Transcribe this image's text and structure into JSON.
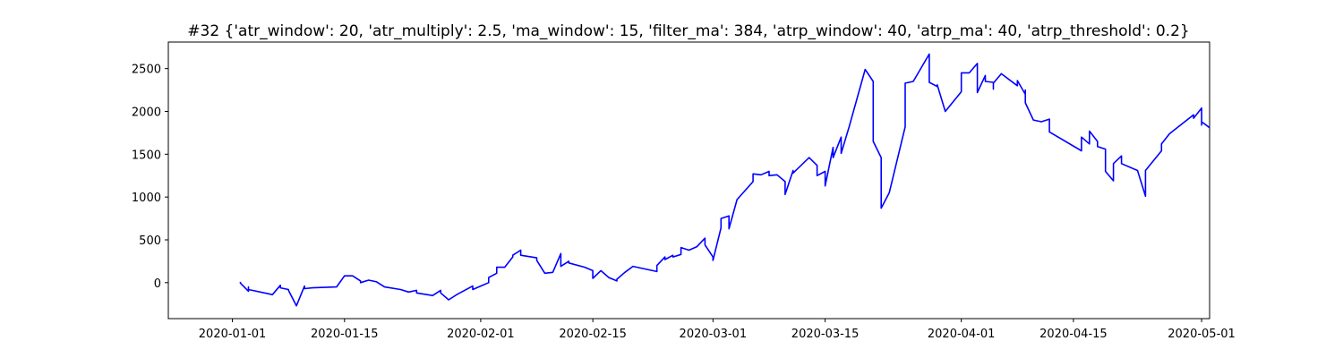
{
  "chart_data": {
    "type": "line",
    "title": "#32 {'atr_window': 20, 'atr_multiply': 2.5, 'ma_window': 15, 'filter_ma': 384, 'atrp_window': 40, 'atrp_ma': 40, 'atrp_threshold': 0.2}",
    "xlabel": "",
    "ylabel": "",
    "x_axis": "date",
    "xlim": [
      "2019-12-24",
      "2020-05-02"
    ],
    "ylim": [
      -420,
      2810
    ],
    "x_ticks": [
      "2020-01-01",
      "2020-01-15",
      "2020-02-01",
      "2020-02-15",
      "2020-03-01",
      "2020-03-15",
      "2020-04-01",
      "2020-04-15",
      "2020-05-01"
    ],
    "y_ticks": [
      0,
      500,
      1000,
      1500,
      2000,
      2500
    ],
    "grid": false,
    "legend": "none",
    "series": [
      {
        "color": "#0000ff",
        "points": [
          [
            "2020-01-02",
            10
          ],
          [
            "2020-01-02",
            -5
          ],
          [
            "2020-01-03",
            -100
          ],
          [
            "2020-01-03",
            -50
          ],
          [
            "2020-01-03",
            -80
          ],
          [
            "2020-01-06",
            -140
          ],
          [
            "2020-01-07",
            -30
          ],
          [
            "2020-01-07",
            -60
          ],
          [
            "2020-01-08",
            -80
          ],
          [
            "2020-01-08",
            -90
          ],
          [
            "2020-01-09",
            -270
          ],
          [
            "2020-01-10",
            -40
          ],
          [
            "2020-01-10",
            -70
          ],
          [
            "2020-01-11",
            -60
          ],
          [
            "2020-01-14",
            -50
          ],
          [
            "2020-01-15",
            80
          ],
          [
            "2020-01-16",
            80
          ],
          [
            "2020-01-17",
            20
          ],
          [
            "2020-01-17",
            0
          ],
          [
            "2020-01-18",
            30
          ],
          [
            "2020-01-19",
            10
          ],
          [
            "2020-01-20",
            -50
          ],
          [
            "2020-01-22",
            -80
          ],
          [
            "2020-01-23",
            -110
          ],
          [
            "2020-01-24",
            -90
          ],
          [
            "2020-01-24",
            -120
          ],
          [
            "2020-01-26",
            -150
          ],
          [
            "2020-01-27",
            -90
          ],
          [
            "2020-01-27",
            -120
          ],
          [
            "2020-01-28",
            -200
          ],
          [
            "2020-01-29",
            -140
          ],
          [
            "2020-01-31",
            -40
          ],
          [
            "2020-01-31",
            -80
          ],
          [
            "2020-02-01",
            -40
          ],
          [
            "2020-02-02",
            0
          ],
          [
            "2020-02-02",
            60
          ],
          [
            "2020-02-03",
            110
          ],
          [
            "2020-02-03",
            180
          ],
          [
            "2020-02-04",
            180
          ],
          [
            "2020-02-05",
            300
          ],
          [
            "2020-02-05",
            320
          ],
          [
            "2020-02-06",
            380
          ],
          [
            "2020-02-06",
            320
          ],
          [
            "2020-02-08",
            290
          ],
          [
            "2020-02-08",
            260
          ],
          [
            "2020-02-09",
            110
          ],
          [
            "2020-02-10",
            120
          ],
          [
            "2020-02-11",
            340
          ],
          [
            "2020-02-11",
            190
          ],
          [
            "2020-02-12",
            250
          ],
          [
            "2020-02-12",
            230
          ],
          [
            "2020-02-14",
            180
          ],
          [
            "2020-02-15",
            140
          ],
          [
            "2020-02-15",
            50
          ],
          [
            "2020-02-16",
            140
          ],
          [
            "2020-02-17",
            60
          ],
          [
            "2020-02-18",
            20
          ],
          [
            "2020-02-18",
            40
          ],
          [
            "2020-02-19",
            120
          ],
          [
            "2020-02-20",
            190
          ],
          [
            "2020-02-23",
            130
          ],
          [
            "2020-02-23",
            200
          ],
          [
            "2020-02-24",
            300
          ],
          [
            "2020-02-24",
            270
          ],
          [
            "2020-02-25",
            320
          ],
          [
            "2020-02-25",
            300
          ],
          [
            "2020-02-26",
            330
          ],
          [
            "2020-02-26",
            410
          ],
          [
            "2020-02-27",
            380
          ],
          [
            "2020-02-28",
            420
          ],
          [
            "2020-02-29",
            520
          ],
          [
            "2020-02-29",
            440
          ],
          [
            "2020-03-01",
            300
          ],
          [
            "2020-03-01",
            260
          ],
          [
            "2020-03-02",
            640
          ],
          [
            "2020-03-02",
            750
          ],
          [
            "2020-03-03",
            780
          ],
          [
            "2020-03-03",
            630
          ],
          [
            "2020-03-04",
            970
          ],
          [
            "2020-03-06",
            1180
          ],
          [
            "2020-03-06",
            1270
          ],
          [
            "2020-03-07",
            1260
          ],
          [
            "2020-03-08",
            1300
          ],
          [
            "2020-03-08",
            1250
          ],
          [
            "2020-03-09",
            1260
          ],
          [
            "2020-03-10",
            1180
          ],
          [
            "2020-03-10",
            1030
          ],
          [
            "2020-03-11",
            1310
          ],
          [
            "2020-03-11",
            1280
          ],
          [
            "2020-03-13",
            1460
          ],
          [
            "2020-03-14",
            1370
          ],
          [
            "2020-03-14",
            1250
          ],
          [
            "2020-03-15",
            1300
          ],
          [
            "2020-03-15",
            1130
          ],
          [
            "2020-03-16",
            1580
          ],
          [
            "2020-03-16",
            1460
          ],
          [
            "2020-03-17",
            1700
          ],
          [
            "2020-03-17",
            1510
          ],
          [
            "2020-03-18",
            1820
          ],
          [
            "2020-03-20",
            2490
          ],
          [
            "2020-03-21",
            2350
          ],
          [
            "2020-03-21",
            1990
          ],
          [
            "2020-03-21",
            1650
          ],
          [
            "2020-03-22",
            1460
          ],
          [
            "2020-03-22",
            870
          ],
          [
            "2020-03-23",
            1050
          ],
          [
            "2020-03-25",
            1820
          ],
          [
            "2020-03-25",
            2330
          ],
          [
            "2020-03-26",
            2350
          ],
          [
            "2020-03-28",
            2670
          ],
          [
            "2020-03-28",
            2340
          ],
          [
            "2020-03-29",
            2290
          ],
          [
            "2020-03-29",
            2310
          ],
          [
            "2020-03-30",
            2000
          ],
          [
            "2020-04-01",
            2230
          ],
          [
            "2020-04-01",
            2450
          ],
          [
            "2020-04-02",
            2450
          ],
          [
            "2020-04-03",
            2560
          ],
          [
            "2020-04-03",
            2220
          ],
          [
            "2020-04-04",
            2420
          ],
          [
            "2020-04-04",
            2350
          ],
          [
            "2020-04-05",
            2340
          ],
          [
            "2020-04-05",
            2260
          ],
          [
            "2020-04-05",
            2330
          ],
          [
            "2020-04-06",
            2440
          ],
          [
            "2020-04-08",
            2300
          ],
          [
            "2020-04-08",
            2360
          ],
          [
            "2020-04-09",
            2200
          ],
          [
            "2020-04-09",
            2250
          ],
          [
            "2020-04-09",
            2100
          ],
          [
            "2020-04-10",
            1900
          ],
          [
            "2020-04-11",
            1880
          ],
          [
            "2020-04-12",
            1910
          ],
          [
            "2020-04-12",
            1760
          ],
          [
            "2020-04-16",
            1540
          ],
          [
            "2020-04-16",
            1700
          ],
          [
            "2020-04-17",
            1620
          ],
          [
            "2020-04-17",
            1770
          ],
          [
            "2020-04-18",
            1650
          ],
          [
            "2020-04-18",
            1590
          ],
          [
            "2020-04-19",
            1560
          ],
          [
            "2020-04-19",
            1300
          ],
          [
            "2020-04-20",
            1190
          ],
          [
            "2020-04-20",
            1390
          ],
          [
            "2020-04-21",
            1480
          ],
          [
            "2020-04-21",
            1390
          ],
          [
            "2020-04-23",
            1310
          ],
          [
            "2020-04-24",
            1010
          ],
          [
            "2020-04-24",
            1310
          ],
          [
            "2020-04-26",
            1540
          ],
          [
            "2020-04-26",
            1620
          ],
          [
            "2020-04-27",
            1740
          ],
          [
            "2020-04-30",
            1960
          ],
          [
            "2020-04-30",
            1920
          ],
          [
            "2020-05-01",
            2040
          ],
          [
            "2020-05-01",
            1840
          ],
          [
            "2020-05-01",
            1880
          ],
          [
            "2020-05-02",
            1810
          ]
        ]
      }
    ]
  }
}
